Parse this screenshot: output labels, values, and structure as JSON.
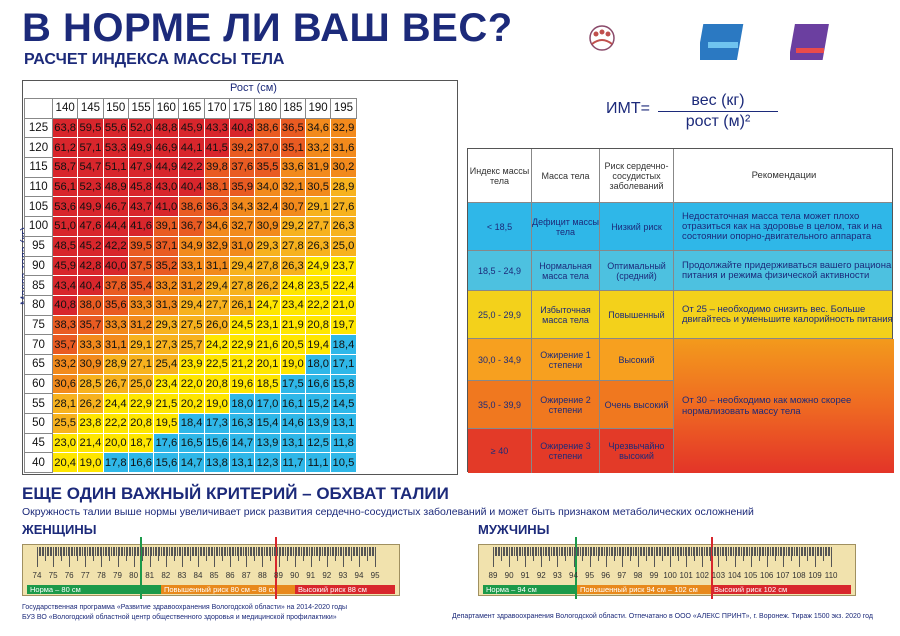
{
  "header": {
    "title": "В НОРМЕ ЛИ ВАШ ВЕС?",
    "subtitle": "РАСЧЕТ ИНДЕКСА МАССЫ ТЕЛА"
  },
  "bmi_table": {
    "height_label": "Рост (см)",
    "mass_label": "Масса тела (кг)",
    "heights": [
      "140",
      "145",
      "150",
      "155",
      "160",
      "165",
      "170",
      "175",
      "180",
      "185",
      "190",
      "195"
    ],
    "rows": [
      {
        "w": "125",
        "v": [
          "63,8",
          "59,5",
          "55,6",
          "52,0",
          "48,8",
          "45,9",
          "43,3",
          "40,8",
          "38,6",
          "36,5",
          "34,6",
          "32,9"
        ]
      },
      {
        "w": "120",
        "v": [
          "61,2",
          "57,1",
          "53,3",
          "49,9",
          "46,9",
          "44,1",
          "41,5",
          "39,2",
          "37,0",
          "35,1",
          "33,2",
          "31,6"
        ]
      },
      {
        "w": "115",
        "v": [
          "58,7",
          "54,7",
          "51,1",
          "47,9",
          "44,9",
          "42,2",
          "39,8",
          "37,6",
          "35,5",
          "33,6",
          "31,9",
          "30,2"
        ]
      },
      {
        "w": "110",
        "v": [
          "56,1",
          "52,3",
          "48,9",
          "45,8",
          "43,0",
          "40,4",
          "38,1",
          "35,9",
          "34,0",
          "32,1",
          "30,5",
          "28,9"
        ]
      },
      {
        "w": "105",
        "v": [
          "53,6",
          "49,9",
          "46,7",
          "43,7",
          "41,0",
          "38,6",
          "36,3",
          "34,3",
          "32,4",
          "30,7",
          "29,1",
          "27,6"
        ]
      },
      {
        "w": "100",
        "v": [
          "51,0",
          "47,6",
          "44,4",
          "41,6",
          "39,1",
          "36,7",
          "34,6",
          "32,7",
          "30,9",
          "29,2",
          "27,7",
          "26,3"
        ]
      },
      {
        "w": "95",
        "v": [
          "48,5",
          "45,2",
          "42,2",
          "39,5",
          "37,1",
          "34,9",
          "32,9",
          "31,0",
          "29,3",
          "27,8",
          "26,3",
          "25,0"
        ]
      },
      {
        "w": "90",
        "v": [
          "45,9",
          "42,8",
          "40,0",
          "37,5",
          "35,2",
          "33,1",
          "31,1",
          "29,4",
          "27,8",
          "26,3",
          "24,9",
          "23,7"
        ]
      },
      {
        "w": "85",
        "v": [
          "43,4",
          "40,4",
          "37,8",
          "35,4",
          "33,2",
          "31,2",
          "29,4",
          "27,8",
          "26,2",
          "24,8",
          "23,5",
          "22,4"
        ]
      },
      {
        "w": "80",
        "v": [
          "40,8",
          "38,0",
          "35,6",
          "33,3",
          "31,3",
          "29,4",
          "27,7",
          "26,1",
          "24,7",
          "23,4",
          "22,2",
          "21,0"
        ]
      },
      {
        "w": "75",
        "v": [
          "38,3",
          "35,7",
          "33,3",
          "31,2",
          "29,3",
          "27,5",
          "26,0",
          "24,5",
          "23,1",
          "21,9",
          "20,8",
          "19,7"
        ]
      },
      {
        "w": "70",
        "v": [
          "35,7",
          "33,3",
          "31,1",
          "29,1",
          "27,3",
          "25,7",
          "24,2",
          "22,9",
          "21,6",
          "20,5",
          "19,4",
          "18,4"
        ]
      },
      {
        "w": "65",
        "v": [
          "33,2",
          "30,9",
          "28,9",
          "27,1",
          "25,4",
          "23,9",
          "22,5",
          "21,2",
          "20,1",
          "19,0",
          "18,0",
          "17,1"
        ]
      },
      {
        "w": "60",
        "v": [
          "30,6",
          "28,5",
          "26,7",
          "25,0",
          "23,4",
          "22,0",
          "20,8",
          "19,6",
          "18,5",
          "17,5",
          "16,6",
          "15,8"
        ]
      },
      {
        "w": "55",
        "v": [
          "28,1",
          "26,2",
          "24,4",
          "22,9",
          "21,5",
          "20,2",
          "19,0",
          "18,0",
          "17,0",
          "16,1",
          "15,2",
          "14,5"
        ]
      },
      {
        "w": "50",
        "v": [
          "25,5",
          "23,8",
          "22,2",
          "20,8",
          "19,5",
          "18,4",
          "17,3",
          "16,3",
          "15,4",
          "14,6",
          "13,9",
          "13,1"
        ]
      },
      {
        "w": "45",
        "v": [
          "23,0",
          "21,4",
          "20,0",
          "18,7",
          "17,6",
          "16,5",
          "15,6",
          "14,7",
          "13,9",
          "13,1",
          "12,5",
          "11,8"
        ]
      },
      {
        "w": "40",
        "v": [
          "20,4",
          "19,0",
          "17,8",
          "16,6",
          "15,6",
          "14,7",
          "13,8",
          "13,1",
          "12,3",
          "11,7",
          "11,1",
          "10,5"
        ]
      }
    ]
  },
  "formula": {
    "label": "ИМТ=",
    "numerator": "вес (кг)",
    "denominator": "рост (м)²"
  },
  "recommendations": {
    "headers": {
      "index": "Индекс массы тела",
      "mass": "Масса тела",
      "risk": "Риск сердечно-сосудистых заболеваний",
      "advice": "Рекомендации"
    },
    "rows": [
      {
        "index": "< 18,5",
        "mass": "Дефицит массы тела",
        "risk": "Низкий риск",
        "advice": "Недостаточная масса тела может плохо отразиться как на здоровье в целом, так и на состоянии опорно-двигательного аппарата"
      },
      {
        "index": "18,5 - 24,9",
        "mass": "Нормальная масса тела",
        "risk": "Оптимальный (средний)",
        "advice": "Продолжайте придерживаться вашего рациона питания и режима физической активности"
      },
      {
        "index": "25,0 - 29,9",
        "mass": "Избыточная масса тела",
        "risk": "Повышенный",
        "advice": "От 25 – необходимо снизить вес. Больше двигайтесь и уменьшите калорийность питания"
      },
      {
        "index": "30,0 - 34,9",
        "mass": "Ожирение 1 степени",
        "risk": "Высокий",
        "advice": ""
      },
      {
        "index": "35,0 - 39,9",
        "mass": "Ожирение 2 степени",
        "risk": "Очень высокий",
        "advice": ""
      },
      {
        "index": "≥ 40",
        "mass": "Ожирение 3 степени",
        "risk": "Чрезвычайно высокий",
        "advice": ""
      }
    ],
    "obesity_advice": "От 30 – необходимо как можно скорее нормализовать массу тела"
  },
  "waist": {
    "title": "ЕЩЕ ОДИН ВАЖНЫЙ КРИТЕРИЙ – ОБХВАТ ТАЛИИ",
    "text": "Окружность талии выше нормы увеличивает риск развития сердечно-сосудистых заболеваний и может быть признаком метаболических осложнений",
    "women": {
      "label": "ЖЕНЩИНЫ",
      "scale": [
        "74",
        "75",
        "76",
        "77",
        "78",
        "79",
        "80",
        "81",
        "82",
        "83",
        "84",
        "85",
        "86",
        "87",
        "88",
        "89",
        "90",
        "91",
        "92",
        "93",
        "94",
        "95"
      ],
      "norm": "Норма – 80 см",
      "elevated": "Повышенный риск 80 см – 88 см",
      "high": "Высокий риск 88 см"
    },
    "men": {
      "label": "МУЖЧИНЫ",
      "scale": [
        "89",
        "90",
        "91",
        "92",
        "93",
        "94",
        "95",
        "96",
        "97",
        "98",
        "99",
        "100",
        "101",
        "102",
        "103",
        "104",
        "105",
        "106",
        "107",
        "108",
        "109",
        "110"
      ],
      "norm": "Норма – 94 см",
      "elevated": "Повышенный риск 94 см – 102 см",
      "high": "Высокий риск 102 см"
    }
  },
  "footer": {
    "left1": "Государственная программа «Развитие здравоохранения Вологодской области» на 2014-2020 годы",
    "left2": "БУЗ ВО «Вологодский областной центр общественного здоровья и медицинской профилактики»",
    "right": "Департамент здравоохранения Вологодской области. Отпечатано в ООО «АЛЕКС ПРИНТ», г. Воронеж. Тираж 1500 экз. 2020 год"
  },
  "colors": {
    "deficit": "#2fb7e8",
    "normal": "#ffe600",
    "over": "#f7b21e",
    "ob1": "#f28a1c",
    "ob2": "#e95b22",
    "ob3": "#d8262c"
  }
}
